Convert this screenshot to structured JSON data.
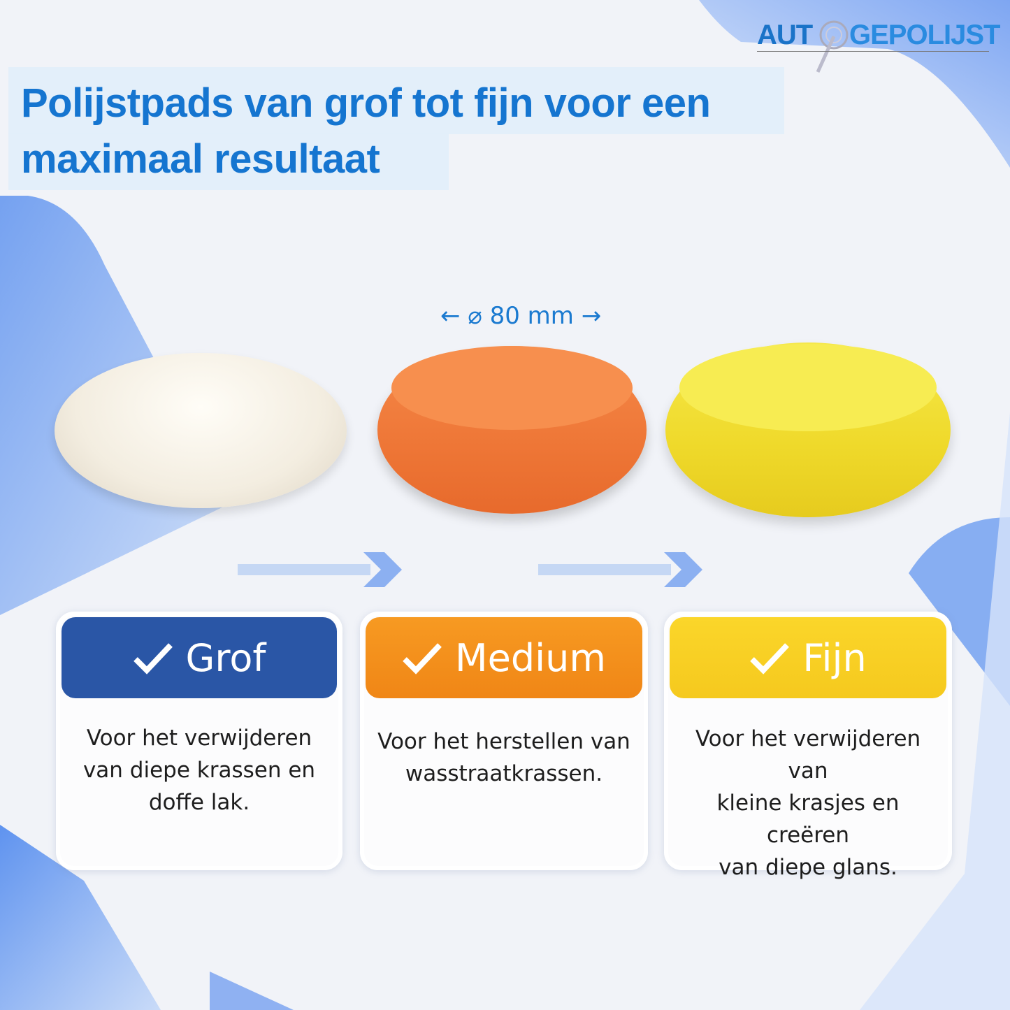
{
  "title": "Polijstpads van grof tot fijn voor een maximaal resultaat",
  "title_line1": "Polijstpads van grof tot fijn voor een",
  "title_line2": "maximaal resultaat",
  "logo": {
    "part1": "AUT",
    "part2": "GEPOLIJST"
  },
  "dimension": "← ⌀ 80 mm →",
  "colors": {
    "brand": "#1575d0",
    "grof": "#2a56a6",
    "medium": "#f38c1a",
    "fijn": "#f9d227"
  },
  "pads": [
    {
      "name": "wool",
      "color": "#f4efe4"
    },
    {
      "name": "orange-foam",
      "color": "#f58a44"
    },
    {
      "name": "yellow-foam",
      "color": "#f4e33a"
    }
  ],
  "cards": [
    {
      "label": "Grof",
      "lines": [
        "Voor het verwijderen",
        "van diepe krassen en",
        "doffe lak."
      ]
    },
    {
      "label": "Medium",
      "lines": [
        "Voor het herstellen van",
        "wasstraatkrassen."
      ]
    },
    {
      "label": "Fijn",
      "lines": [
        "Voor het verwijderen van",
        "kleine krasjes en creëren",
        "van diepe glans."
      ]
    }
  ]
}
